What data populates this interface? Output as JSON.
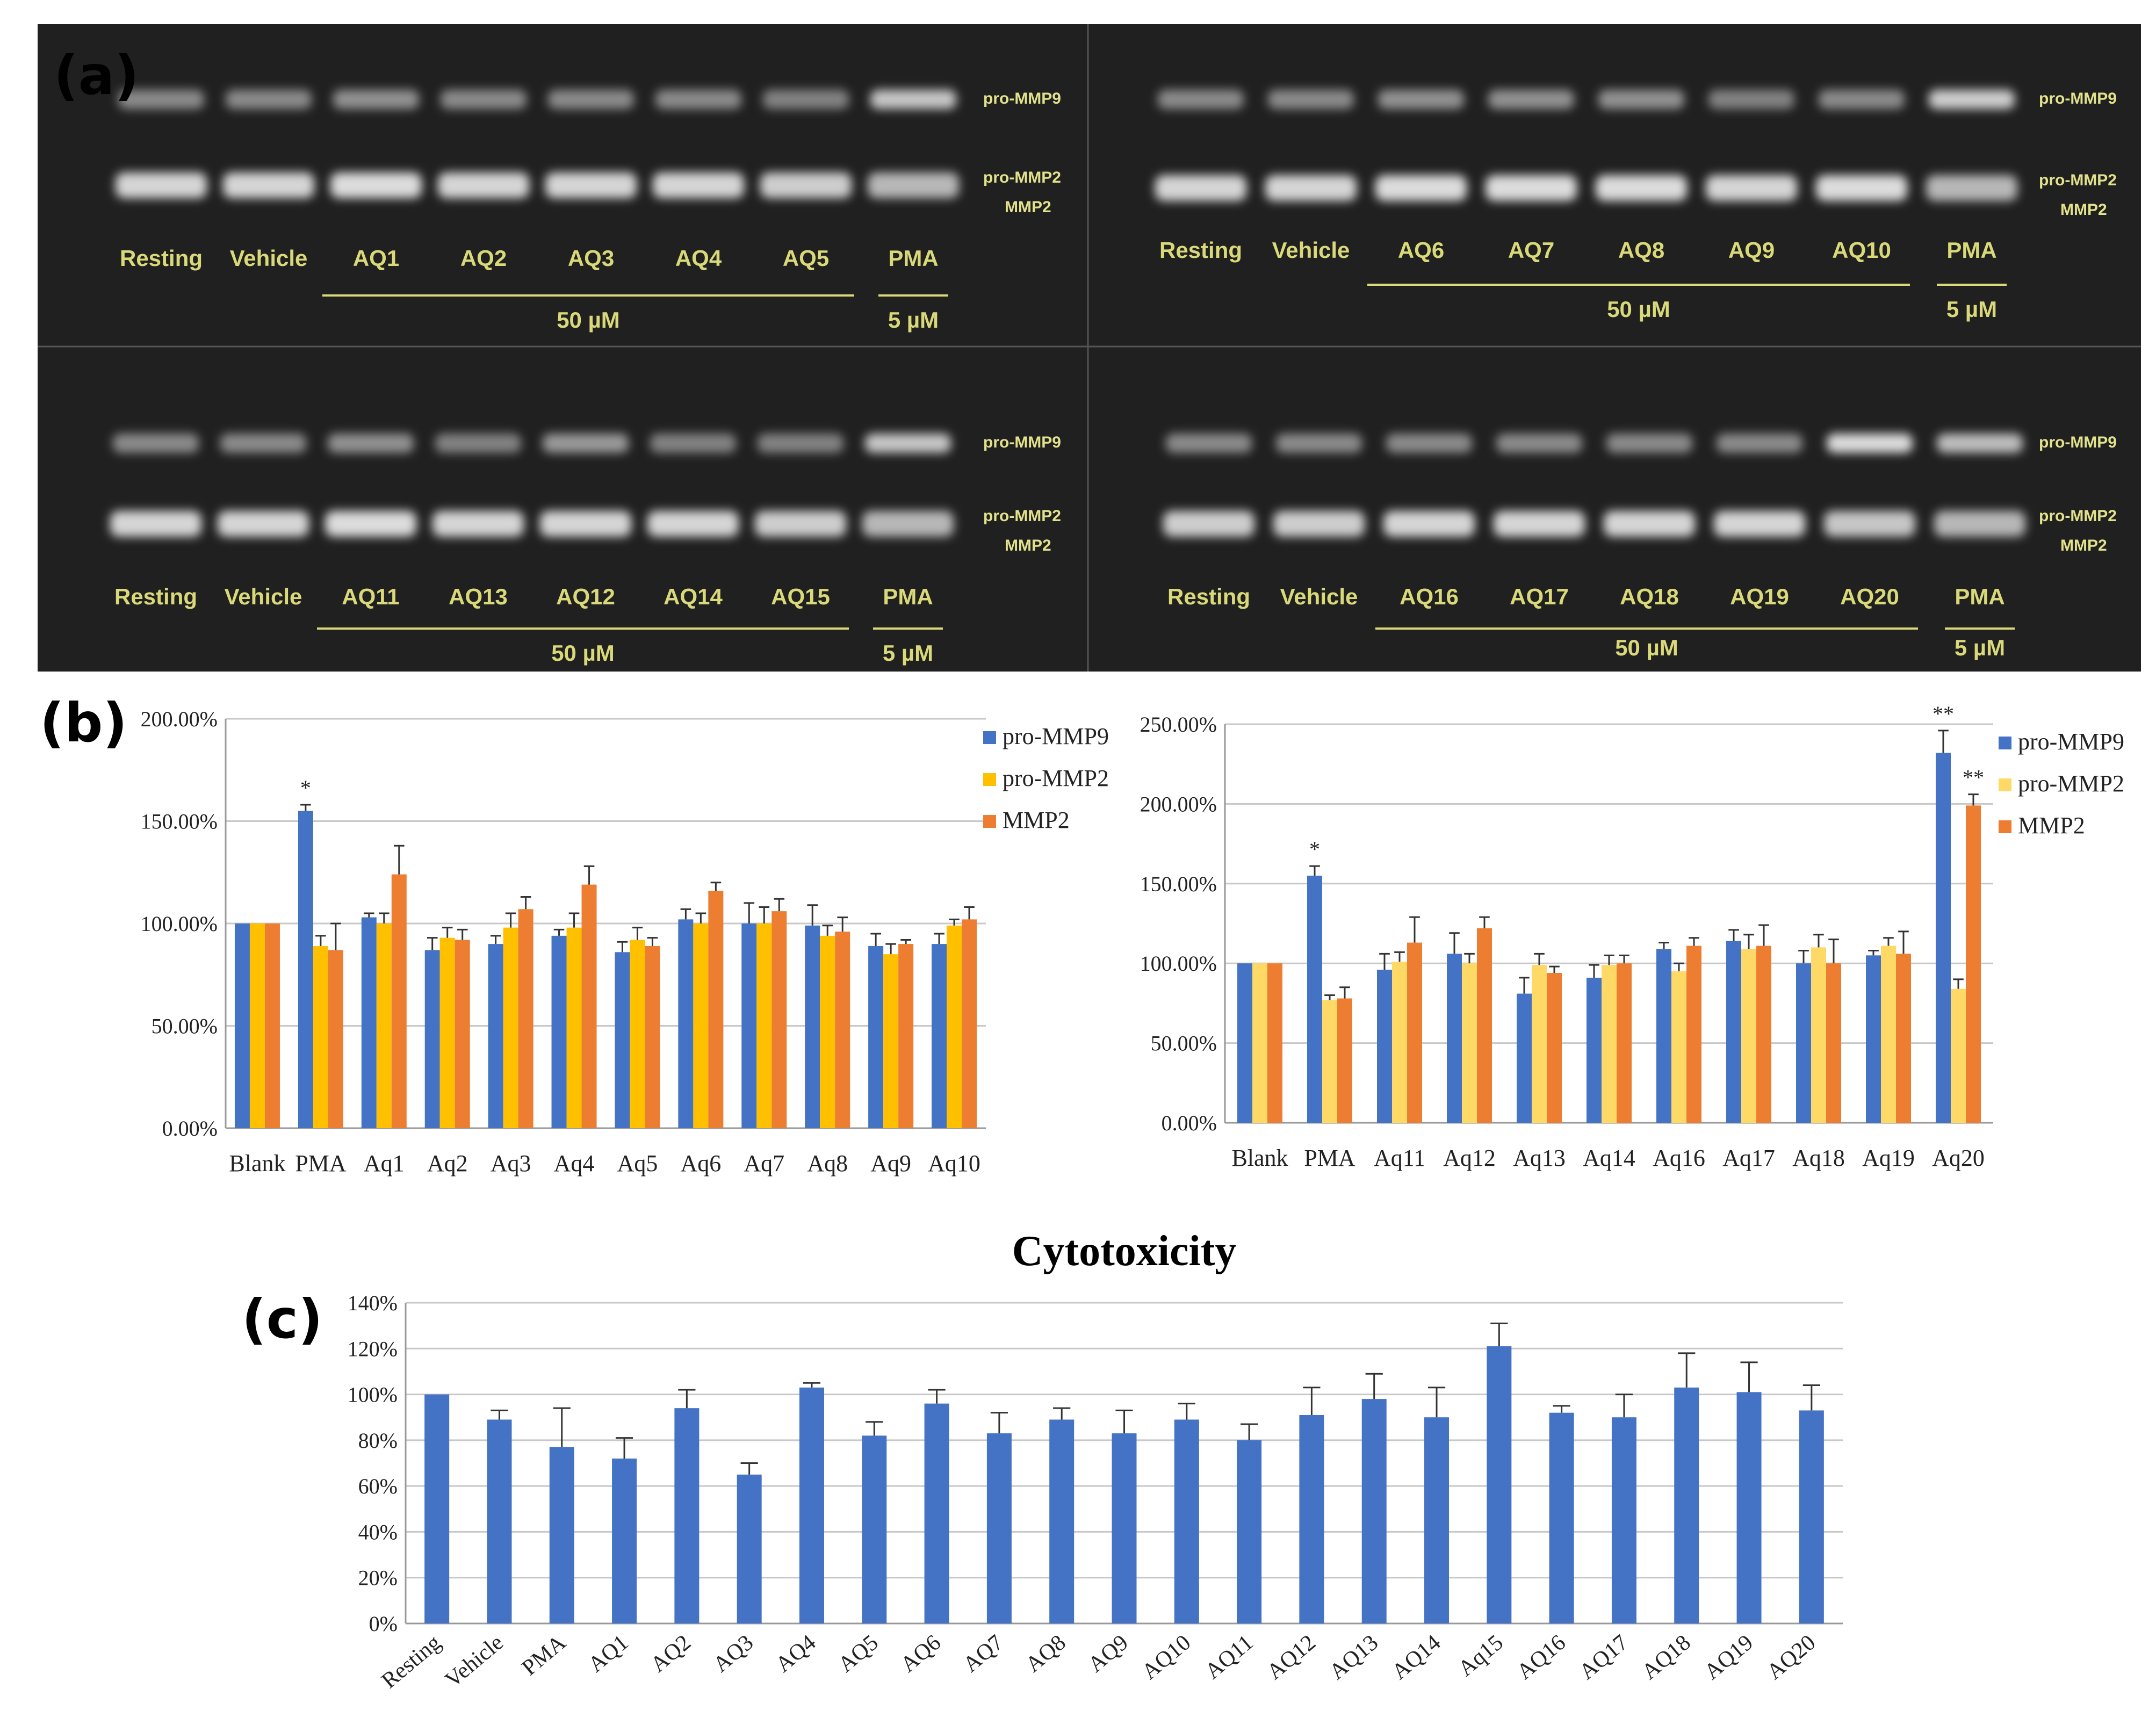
{
  "panel_letters": {
    "a": "(a)",
    "b": "(b)",
    "c": "(c)"
  },
  "gels": [
    {
      "lanes": [
        "Resting",
        "Vehicle",
        "AQ1",
        "AQ2",
        "AQ3",
        "AQ4",
        "AQ5",
        "PMA"
      ],
      "conc_group": "50 µM",
      "conc_pma": "5 µM",
      "side_labels": [
        "pro-MMP9",
        "pro-MMP2",
        "MMP2"
      ],
      "band_intensity": {
        "pro_mmp9": [
          0.45,
          0.45,
          0.5,
          0.45,
          0.45,
          0.45,
          0.4,
          0.85
        ],
        "pro_mmp2": [
          0.95,
          0.95,
          1.0,
          0.95,
          0.95,
          0.95,
          0.9,
          0.75
        ]
      }
    },
    {
      "lanes": [
        "Resting",
        "Vehicle",
        "AQ6",
        "AQ7",
        "AQ8",
        "AQ9",
        "AQ10",
        "PMA"
      ],
      "conc_group": "50 µM",
      "conc_pma": "5 µM",
      "side_labels": [
        "pro-MMP9",
        "pro-MMP2",
        "MMP2"
      ],
      "band_intensity": {
        "pro_mmp9": [
          0.45,
          0.45,
          0.5,
          0.5,
          0.5,
          0.4,
          0.45,
          0.9
        ],
        "pro_mmp2": [
          0.95,
          0.95,
          1.0,
          1.0,
          1.0,
          0.95,
          1.0,
          0.75
        ]
      }
    },
    {
      "lanes": [
        "Resting",
        "Vehicle",
        "AQ11",
        "AQ13",
        "AQ12",
        "AQ14",
        "AQ15",
        "PMA"
      ],
      "conc_group": "50 µM",
      "conc_pma": "5 µM",
      "side_labels": [
        "pro-MMP9",
        "pro-MMP2",
        "MMP2"
      ],
      "band_intensity": {
        "pro_mmp9": [
          0.45,
          0.45,
          0.5,
          0.4,
          0.55,
          0.4,
          0.4,
          0.85
        ],
        "pro_mmp2": [
          0.95,
          0.95,
          1.0,
          0.95,
          0.95,
          0.95,
          0.9,
          0.75
        ]
      }
    },
    {
      "lanes": [
        "Resting",
        "Vehicle",
        "AQ16",
        "AQ17",
        "AQ18",
        "AQ19",
        "AQ20",
        "PMA"
      ],
      "conc_group": "50 µM",
      "conc_pma": "5 µM",
      "side_labels": [
        "pro-MMP9",
        "pro-MMP2",
        "MMP2"
      ],
      "band_intensity": {
        "pro_mmp9": [
          0.45,
          0.45,
          0.45,
          0.45,
          0.45,
          0.45,
          1.0,
          0.8
        ],
        "pro_mmp2": [
          0.9,
          0.9,
          0.95,
          0.95,
          0.95,
          0.95,
          0.85,
          0.75
        ]
      }
    }
  ],
  "chart_data": [
    {
      "type": "bar",
      "categories": [
        "Blank",
        "PMA",
        "Aq1",
        "Aq2",
        "Aq3",
        "Aq4",
        "Aq5",
        "Aq6",
        "Aq7",
        "Aq8",
        "Aq9",
        "Aq10"
      ],
      "series": [
        {
          "name": "pro-MMP9",
          "color": "#4472c4",
          "values": [
            100,
            155,
            103,
            87,
            90,
            94,
            86,
            102,
            100,
            99,
            89,
            90
          ],
          "errors": [
            0,
            3,
            2,
            6,
            4,
            3,
            5,
            5,
            10,
            10,
            6,
            5
          ]
        },
        {
          "name": "pro-MMP2",
          "color": "#ffc000",
          "values": [
            100,
            89,
            100,
            93,
            98,
            98,
            92,
            100,
            100,
            94,
            85,
            99
          ],
          "errors": [
            0,
            5,
            5,
            5,
            7,
            7,
            6,
            5,
            8,
            5,
            5,
            3
          ]
        },
        {
          "name": "MMP2",
          "color": "#ed7d31",
          "values": [
            100,
            87,
            124,
            92,
            107,
            119,
            89,
            116,
            106,
            96,
            90,
            102
          ],
          "errors": [
            0,
            13,
            14,
            5,
            6,
            9,
            4,
            4,
            6,
            7,
            2,
            6
          ]
        }
      ],
      "yticks": [
        "0.00%",
        "50.00%",
        "100.00%",
        "150.00%",
        "200.00%"
      ],
      "ylim": [
        0,
        200
      ],
      "annotations": [
        {
          "category": "PMA",
          "series": "pro-MMP9",
          "text": "*"
        }
      ],
      "legend": "right"
    },
    {
      "type": "bar",
      "categories": [
        "Blank",
        "PMA",
        "Aq11",
        "Aq12",
        "Aq13",
        "Aq14",
        "Aq16",
        "Aq17",
        "Aq18",
        "Aq19",
        "Aq20"
      ],
      "series": [
        {
          "name": "pro-MMP9",
          "color": "#4472c4",
          "values": [
            100,
            155,
            96,
            106,
            81,
            91,
            109,
            114,
            100,
            105,
            232
          ],
          "errors": [
            0,
            6,
            10,
            13,
            10,
            8,
            4,
            7,
            8,
            3,
            14
          ]
        },
        {
          "name": "pro-MMP2",
          "color": "#ffd966",
          "values": [
            100,
            77,
            101,
            100,
            99,
            99,
            95,
            109,
            110,
            111,
            84
          ],
          "errors": [
            0,
            3,
            6,
            6,
            7,
            6,
            5,
            9,
            8,
            5,
            6
          ]
        },
        {
          "name": "MMP2",
          "color": "#ed7d31",
          "values": [
            100,
            78,
            113,
            122,
            94,
            100,
            111,
            111,
            100,
            106,
            199
          ],
          "errors": [
            0,
            7,
            16,
            7,
            4,
            5,
            5,
            13,
            15,
            14,
            7
          ]
        }
      ],
      "yticks": [
        "0.00%",
        "50.00%",
        "100.00%",
        "150.00%",
        "200.00%",
        "250.00%"
      ],
      "ylim": [
        0,
        250
      ],
      "annotations": [
        {
          "category": "PMA",
          "series": "pro-MMP9",
          "text": "*"
        },
        {
          "category": "Aq20",
          "series": "pro-MMP9",
          "text": "**"
        },
        {
          "category": "Aq20",
          "series": "MMP2",
          "text": "**"
        }
      ],
      "legend": "right"
    },
    {
      "type": "bar",
      "title": "Cytotoxicity",
      "categories": [
        "Resting",
        "Vehicle",
        "PMA",
        "AQ1",
        "AQ2",
        "AQ3",
        "AQ4",
        "AQ5",
        "AQ6",
        "AQ7",
        "AQ8",
        "AQ9",
        "AQ10",
        "AQ11",
        "AQ12",
        "AQ13",
        "AQ14",
        "Aq15",
        "AQ16",
        "AQ17",
        "AQ18",
        "AQ19",
        "AQ20"
      ],
      "series": [
        {
          "name": "Cytotoxicity",
          "color": "#4472c4",
          "values": [
            100,
            89,
            77,
            72,
            94,
            65,
            103,
            82,
            96,
            83,
            89,
            83,
            89,
            80,
            91,
            98,
            90,
            121,
            92,
            90,
            103,
            101,
            93
          ],
          "errors": [
            0,
            4,
            17,
            9,
            8,
            5,
            2,
            6,
            6,
            9,
            5,
            10,
            7,
            7,
            12,
            11,
            13,
            10,
            3,
            10,
            15,
            13,
            11
          ]
        }
      ],
      "yticks": [
        "0%",
        "20%",
        "40%",
        "60%",
        "80%",
        "100%",
        "120%",
        "140%"
      ],
      "ylim": [
        0,
        140
      ],
      "legend": "none"
    }
  ]
}
